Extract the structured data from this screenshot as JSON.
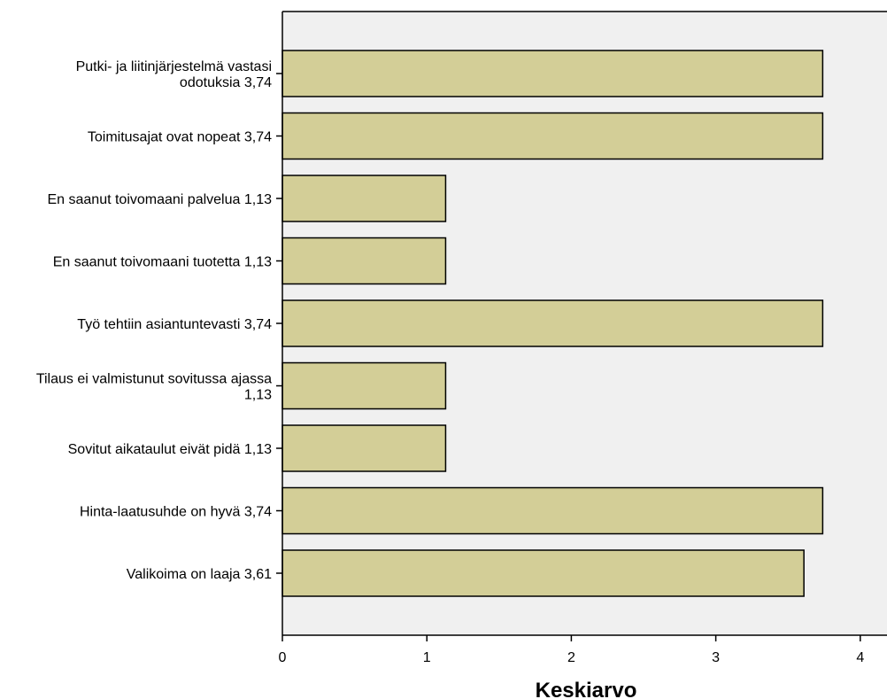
{
  "chart_data": {
    "type": "bar",
    "orientation": "horizontal",
    "categories": [
      [
        "Putki- ja liitinjärjestelmä vastasi",
        "odotuksia 3,74"
      ],
      [
        "Toimitusajat ovat nopeat 3,74"
      ],
      [
        "En saanut toivomaani palvelua 1,13"
      ],
      [
        "En saanut toivomaani tuotetta 1,13"
      ],
      [
        "Työ tehtiin asiantuntevasti 3,74"
      ],
      [
        "Tilaus ei valmistunut sovitussa ajassa",
        "1,13"
      ],
      [
        "Sovitut aikataulut eivät pidä 1,13"
      ],
      [
        "Hinta-laatusuhde on hyvä 3,74"
      ],
      [
        "Valikoima on laaja 3,61"
      ]
    ],
    "values": [
      3.74,
      3.74,
      1.13,
      1.13,
      3.74,
      1.13,
      1.13,
      3.74,
      3.61
    ],
    "xlabel": "Keskiarvo",
    "xlim": [
      0,
      4.2
    ],
    "xticks": [
      "0",
      "1",
      "2",
      "3",
      "4"
    ],
    "grid": false,
    "colors": {
      "bar": "#d3ce97",
      "plot_background": "#f0f0f0"
    }
  }
}
